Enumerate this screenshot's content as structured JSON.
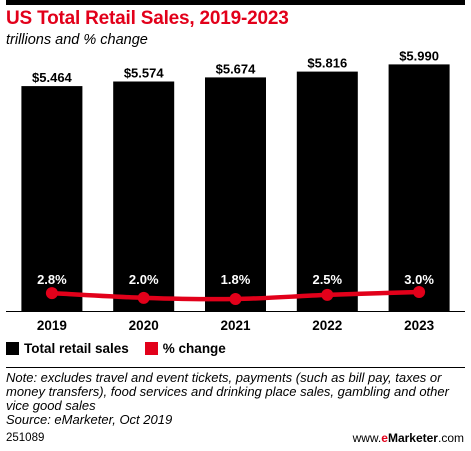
{
  "header": {
    "title": "US Total Retail Sales, 2019-2023",
    "subtitle": "trillions and % change"
  },
  "legend": {
    "bars_label": "Total retail sales",
    "line_label": "% change"
  },
  "note": "Note: excludes travel and event tickets, payments (such as bill pay, taxes or money transfers), food services and drinking place sales, gambling and other vice good sales",
  "source": "Source: eMarketer, Oct 2019",
  "footer": {
    "id": "251089",
    "brand_prefix": "www.",
    "brand_e": "e",
    "brand_name": "Marketer",
    "brand_suffix": ".com"
  },
  "colors": {
    "bar": "#000000",
    "line": "#e2001a",
    "title": "#e2001a"
  },
  "chart_data": {
    "type": "bar",
    "categories": [
      "2019",
      "2020",
      "2021",
      "2022",
      "2023"
    ],
    "series": [
      {
        "name": "Total retail sales",
        "type": "bar",
        "values": [
          5.464,
          5.574,
          5.674,
          5.816,
          5.99
        ],
        "labels": [
          "$5.464",
          "$5.574",
          "$5.674",
          "$5.816",
          "$5.990"
        ]
      },
      {
        "name": "% change",
        "type": "line",
        "values": [
          2.8,
          2.0,
          1.8,
          2.5,
          3.0
        ],
        "labels": [
          "2.8%",
          "2.0%",
          "1.8%",
          "2.5%",
          "3.0%"
        ]
      }
    ],
    "legend": "bottom-left",
    "grid": false
  }
}
